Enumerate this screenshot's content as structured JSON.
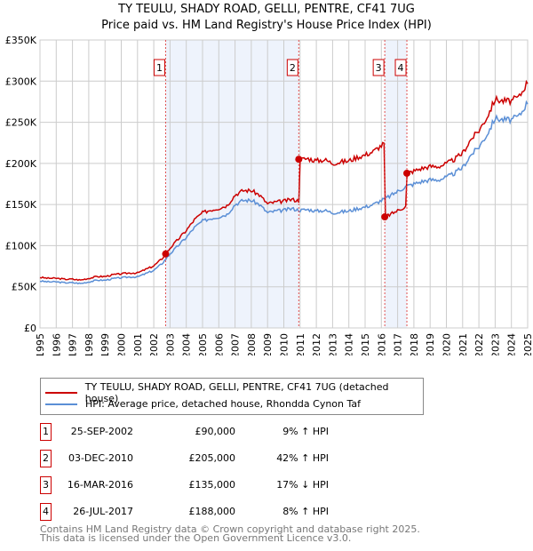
{
  "title": "TY TEULU, SHADY ROAD, GELLI, PENTRE, CF41 7UG",
  "subtitle": "Price paid vs. HM Land Registry's House Price Index (HPI)",
  "chart_data": {
    "type": "line",
    "ylim": [
      0,
      350000
    ],
    "xlim": [
      1995,
      2025
    ],
    "y_ticks": [
      "£0",
      "£50K",
      "£100K",
      "£150K",
      "£200K",
      "£250K",
      "£300K",
      "£350K"
    ],
    "x_ticks": [
      "1995",
      "1996",
      "1997",
      "1998",
      "1999",
      "2000",
      "2001",
      "2002",
      "2003",
      "2004",
      "2005",
      "2006",
      "2007",
      "2008",
      "2009",
      "2010",
      "2011",
      "2012",
      "2013",
      "2014",
      "2015",
      "2016",
      "2017",
      "2018",
      "2019",
      "2020",
      "2021",
      "2022",
      "2023",
      "2024",
      "2025"
    ],
    "series": [
      {
        "name": "TY TEULU, SHADY ROAD, GELLI, PENTRE, CF41 7UG (detached house)",
        "color": "#cc0000"
      },
      {
        "name": "HPI: Average price, detached house, Rhondda Cynon Taf",
        "color": "#5b8fd6",
        "x": [
          1995,
          1995.5,
          1996,
          1996.5,
          1997,
          1997.5,
          1998,
          1998.5,
          1999,
          1999.5,
          2000,
          2000.5,
          2001,
          2001.5,
          2002,
          2002.5,
          2003,
          2003.5,
          2004,
          2004.5,
          2005,
          2005.5,
          2006,
          2006.5,
          2007,
          2007.5,
          2008,
          2008.5,
          2009,
          2009.5,
          2010,
          2010.5,
          2011,
          2011.5,
          2012,
          2012.5,
          2013,
          2013.5,
          2014,
          2014.5,
          2015,
          2015.5,
          2016,
          2016.5,
          2017,
          2017.5,
          2018,
          2018.5,
          2019,
          2019.5,
          2020,
          2020.5,
          2021,
          2021.5,
          2022,
          2022.5,
          2023,
          2023.5,
          2024,
          2024.5,
          2025
        ],
        "y": [
          57000,
          56000,
          56000,
          55000,
          55000,
          54000,
          56000,
          58000,
          58000,
          60000,
          61000,
          62000,
          62000,
          66000,
          70000,
          78000,
          90000,
          100000,
          110000,
          122000,
          130000,
          133000,
          135000,
          138000,
          150000,
          155000,
          155000,
          150000,
          140000,
          142000,
          143000,
          145000,
          143000,
          144000,
          142000,
          143000,
          140000,
          141000,
          142000,
          145000,
          147000,
          150000,
          155000,
          160000,
          166000,
          172000,
          175000,
          178000,
          180000,
          180000,
          183000,
          188000,
          195000,
          210000,
          220000,
          235000,
          255000,
          253000,
          253000,
          258000,
          275000
        ]
      }
    ],
    "sales": [
      {
        "n": "1",
        "date": "25-SEP-2002",
        "x": 2002.73,
        "price": "£90,000",
        "value": 90000,
        "hpi": "9% ↑ HPI"
      },
      {
        "n": "2",
        "date": "03-DEC-2010",
        "x": 2010.92,
        "price": "£205,000",
        "value": 205000,
        "hpi": "42% ↑ HPI"
      },
      {
        "n": "3",
        "date": "16-MAR-2016",
        "x": 2016.21,
        "price": "£135,000",
        "value": 135000,
        "hpi": "17% ↓ HPI"
      },
      {
        "n": "4",
        "date": "26-JUL-2017",
        "x": 2017.57,
        "price": "£188,000",
        "value": 188000,
        "hpi": "8% ↑ HPI"
      }
    ]
  },
  "footer1": "Contains HM Land Registry data © Crown copyright and database right 2025.",
  "footer2": "This data is licensed under the Open Government Licence v3.0."
}
